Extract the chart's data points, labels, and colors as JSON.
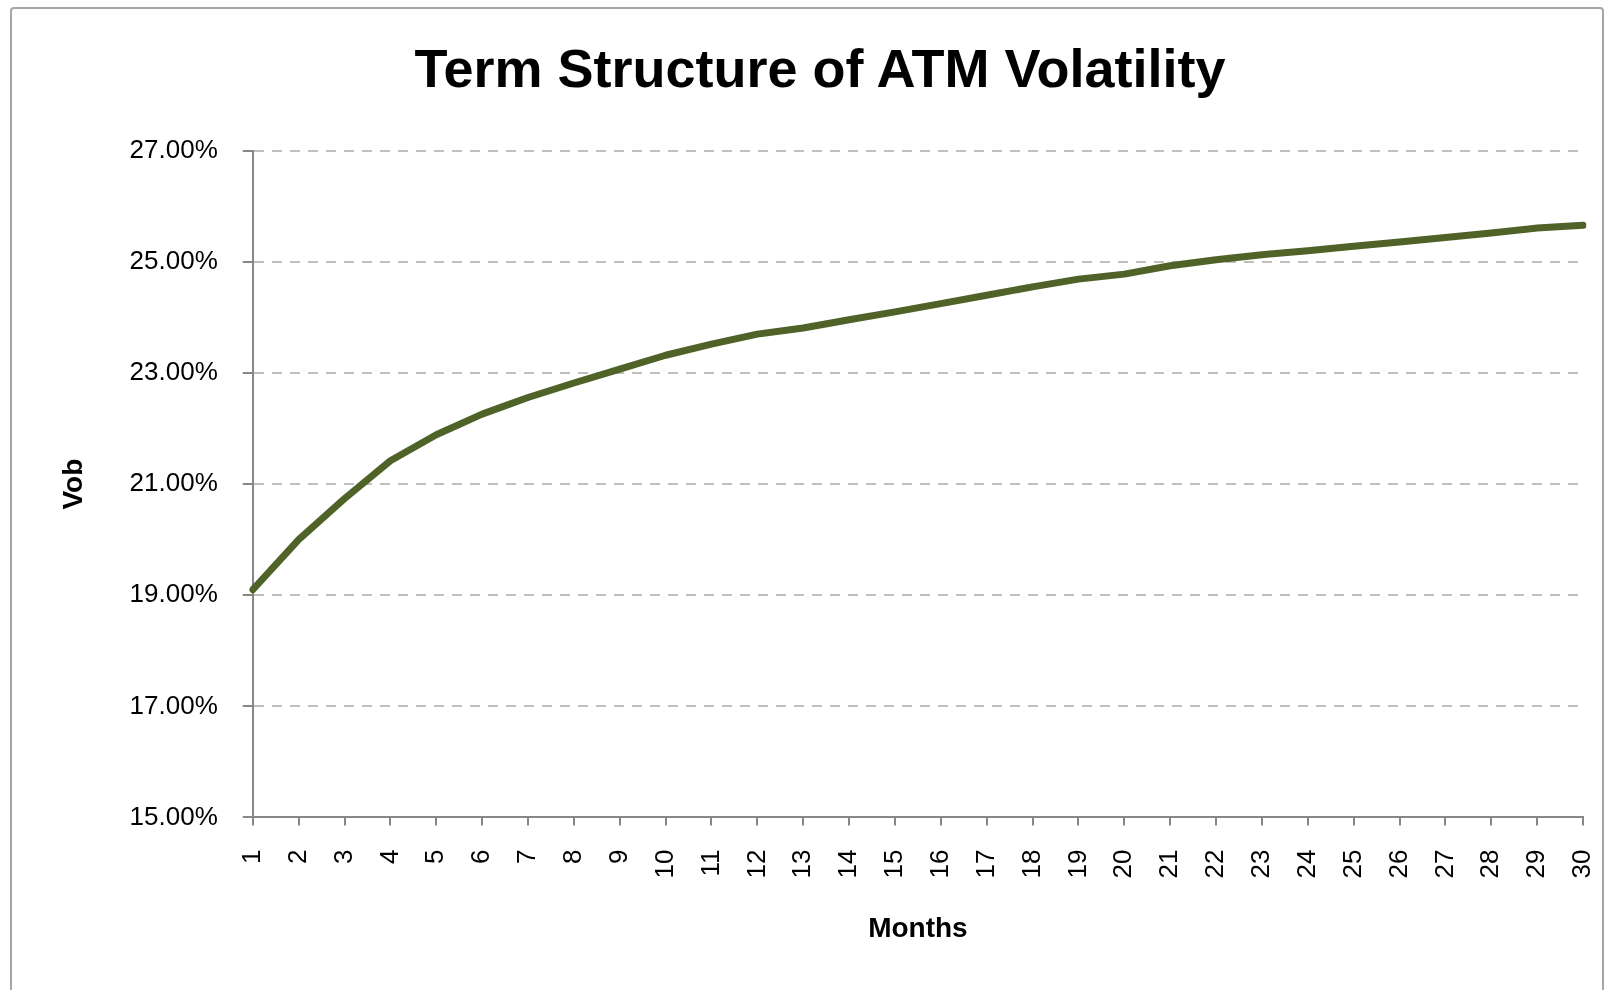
{
  "chart_data": {
    "type": "line",
    "title": "Term Structure of ATM Volatility",
    "xlabel": "Months",
    "ylabel": "Vob",
    "categories": [
      "1",
      "2",
      "3",
      "4",
      "5",
      "6",
      "7",
      "8",
      "9",
      "10",
      "11",
      "12",
      "13",
      "14",
      "15",
      "16",
      "17",
      "18",
      "19",
      "20",
      "21",
      "22",
      "23",
      "24",
      "25",
      "26",
      "27",
      "28",
      "29",
      "30"
    ],
    "series": [
      {
        "color": "#4f6228",
        "values": [
          19.1,
          20.0,
          20.74,
          21.42,
          21.89,
          22.26,
          22.56,
          22.82,
          23.07,
          23.32,
          23.52,
          23.7,
          23.81,
          23.96,
          24.1,
          24.25,
          24.4,
          24.55,
          24.69,
          24.78,
          24.93,
          25.04,
          25.13,
          25.2,
          25.28,
          25.36,
          25.44,
          25.52,
          25.61,
          25.66
        ]
      }
    ],
    "ylim": [
      15,
      27
    ],
    "yticks": [
      {
        "value": 15,
        "label": "15.00%"
      },
      {
        "value": 17,
        "label": "17.00%"
      },
      {
        "value": 19,
        "label": "19.00%"
      },
      {
        "value": 21,
        "label": "21.00%"
      },
      {
        "value": 23,
        "label": "23.00%"
      },
      {
        "value": 25,
        "label": "25.00%"
      },
      {
        "value": 27,
        "label": "27.00%"
      }
    ],
    "grid": "y",
    "legend": false,
    "marker": "none",
    "line_style": "solid"
  }
}
